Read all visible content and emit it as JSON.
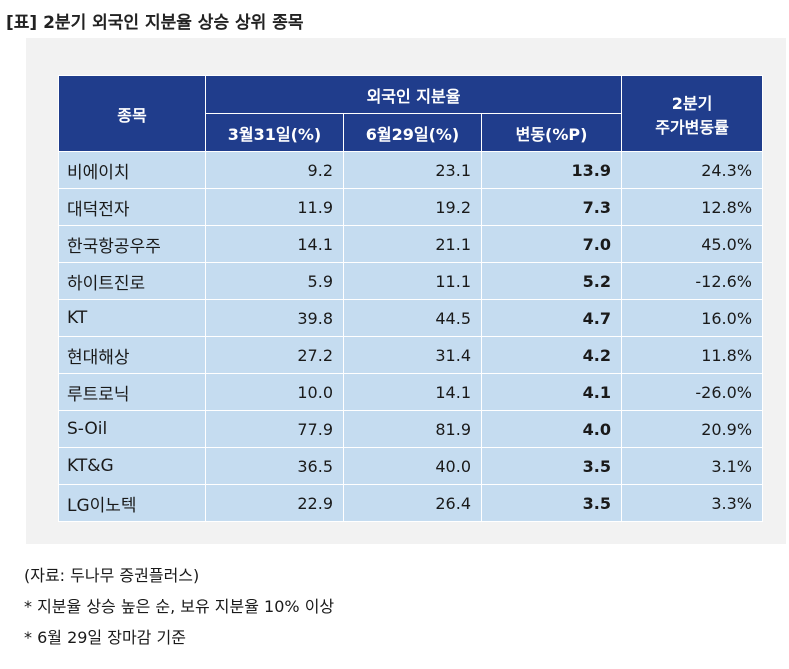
{
  "title": "[표] 2분기 외국인 지분율 상승 상위 종목",
  "table": {
    "headers": {
      "stock": "종목",
      "foreign_ratio": "외국인 지분율",
      "mar31": "3월31일(%)",
      "jun29": "6월29일(%)",
      "change": "변동(%P)",
      "q2_line1": "2분기",
      "q2_line2": "주가변동률"
    },
    "rows": [
      {
        "name": "비에이치",
        "mar31": "9.2",
        "jun29": "23.1",
        "change": "13.9",
        "price_change": "24.3%"
      },
      {
        "name": "대덕전자",
        "mar31": "11.9",
        "jun29": "19.2",
        "change": "7.3",
        "price_change": "12.8%"
      },
      {
        "name": "한국항공우주",
        "mar31": "14.1",
        "jun29": "21.1",
        "change": "7.0",
        "price_change": "45.0%"
      },
      {
        "name": "하이트진로",
        "mar31": "5.9",
        "jun29": "11.1",
        "change": "5.2",
        "price_change": "-12.6%"
      },
      {
        "name": "KT",
        "mar31": "39.8",
        "jun29": "44.5",
        "change": "4.7",
        "price_change": "16.0%"
      },
      {
        "name": "현대해상",
        "mar31": "27.2",
        "jun29": "31.4",
        "change": "4.2",
        "price_change": "11.8%"
      },
      {
        "name": "루트로닉",
        "mar31": "10.0",
        "jun29": "14.1",
        "change": "4.1",
        "price_change": "-26.0%"
      },
      {
        "name": "S-Oil",
        "mar31": "77.9",
        "jun29": "81.9",
        "change": "4.0",
        "price_change": "20.9%"
      },
      {
        "name": "KT&G",
        "mar31": "36.5",
        "jun29": "40.0",
        "change": "3.5",
        "price_change": "3.1%"
      },
      {
        "name": "LG이노텍",
        "mar31": "22.9",
        "jun29": "26.4",
        "change": "3.5",
        "price_change": "3.3%"
      }
    ]
  },
  "notes": {
    "source": "(자료: 두나무 증권플러스)",
    "note1": "* 지분율 상승 높은 순, 보유 지분율 10% 이상",
    "note2": "* 6월 29일 장마감 기준"
  }
}
